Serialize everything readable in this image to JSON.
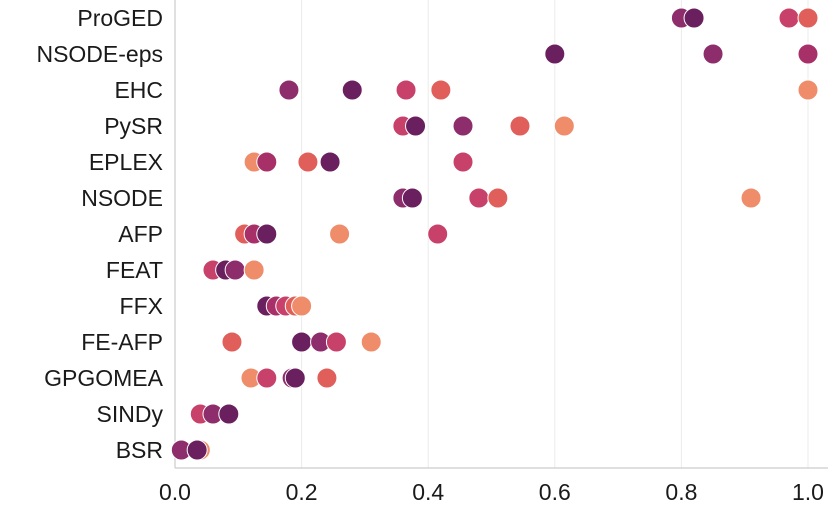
{
  "chart_data": {
    "type": "scatter",
    "title": "",
    "xlabel": "",
    "ylabel": "",
    "xlim": [
      0.0,
      1.0
    ],
    "x_ticks": [
      "0.0",
      "0.2",
      "0.4",
      "0.6",
      "0.8",
      "1.0"
    ],
    "grid": "vertical",
    "legend": "none",
    "categories": [
      "ProGED",
      "NSODE-eps",
      "EHC",
      "PySR",
      "EPLEX",
      "NSODE",
      "AFP",
      "FEAT",
      "FFX",
      "FE-AFP",
      "GPGOMEA",
      "SINDy",
      "BSR"
    ],
    "points": {
      "ProGED": [
        [
          0.97,
          "#c7416a"
        ],
        [
          0.8,
          "#8e2d6c"
        ],
        [
          0.82,
          "#6a1f5f"
        ],
        [
          1.0,
          "#e05f5a"
        ]
      ],
      "NSODE-eps": [
        [
          0.6,
          "#6a1f5f"
        ],
        [
          0.85,
          "#8e2d6c"
        ],
        [
          1.0,
          "#a83068"
        ]
      ],
      "EHC": [
        [
          0.18,
          "#8e2d6c"
        ],
        [
          0.28,
          "#6a1f5f"
        ],
        [
          0.365,
          "#c7416a"
        ],
        [
          0.42,
          "#e05f5a"
        ],
        [
          1.0,
          "#ef8c6a"
        ]
      ],
      "PySR": [
        [
          0.36,
          "#c7416a"
        ],
        [
          0.38,
          "#6a1f5f"
        ],
        [
          0.455,
          "#8e2d6c"
        ],
        [
          0.545,
          "#e05f5a"
        ],
        [
          0.615,
          "#ef8c6a"
        ]
      ],
      "EPLEX": [
        [
          0.125,
          "#ef8c6a"
        ],
        [
          0.145,
          "#a83068"
        ],
        [
          0.21,
          "#e05f5a"
        ],
        [
          0.245,
          "#6a1f5f"
        ],
        [
          0.455,
          "#c7416a"
        ]
      ],
      "NSODE": [
        [
          0.36,
          "#8e2d6c"
        ],
        [
          0.375,
          "#6a1f5f"
        ],
        [
          0.48,
          "#c7416a"
        ],
        [
          0.51,
          "#e05f5a"
        ],
        [
          0.91,
          "#ef8c6a"
        ]
      ],
      "AFP": [
        [
          0.11,
          "#e05f5a"
        ],
        [
          0.125,
          "#a83068"
        ],
        [
          0.145,
          "#6a1f5f"
        ],
        [
          0.26,
          "#ef8c6a"
        ],
        [
          0.415,
          "#c7416a"
        ]
      ],
      "FEAT": [
        [
          0.06,
          "#c7416a"
        ],
        [
          0.08,
          "#6a1f5f"
        ],
        [
          0.095,
          "#8e2d6c"
        ],
        [
          0.125,
          "#ef8c6a"
        ]
      ],
      "FFX": [
        [
          0.145,
          "#6a1f5f"
        ],
        [
          0.16,
          "#a83068"
        ],
        [
          0.175,
          "#c7416a"
        ],
        [
          0.19,
          "#e05f5a"
        ],
        [
          0.2,
          "#ef8c6a"
        ]
      ],
      "FE-AFP": [
        [
          0.09,
          "#e05f5a"
        ],
        [
          0.2,
          "#6a1f5f"
        ],
        [
          0.23,
          "#8e2d6c"
        ],
        [
          0.255,
          "#c7416a"
        ],
        [
          0.31,
          "#ef8c6a"
        ]
      ],
      "GPGOMEA": [
        [
          0.12,
          "#ef8c6a"
        ],
        [
          0.145,
          "#c7416a"
        ],
        [
          0.185,
          "#8e2d6c"
        ],
        [
          0.19,
          "#6a1f5f"
        ],
        [
          0.24,
          "#e05f5a"
        ]
      ],
      "SINDy": [
        [
          0.04,
          "#c7416a"
        ],
        [
          0.06,
          "#8e2d6c"
        ],
        [
          0.085,
          "#6a1f5f"
        ]
      ],
      "BSR": [
        [
          0.01,
          "#8e2d6c"
        ],
        [
          0.04,
          "#ef8c6a"
        ],
        [
          0.035,
          "#6a1f5f"
        ]
      ]
    }
  }
}
